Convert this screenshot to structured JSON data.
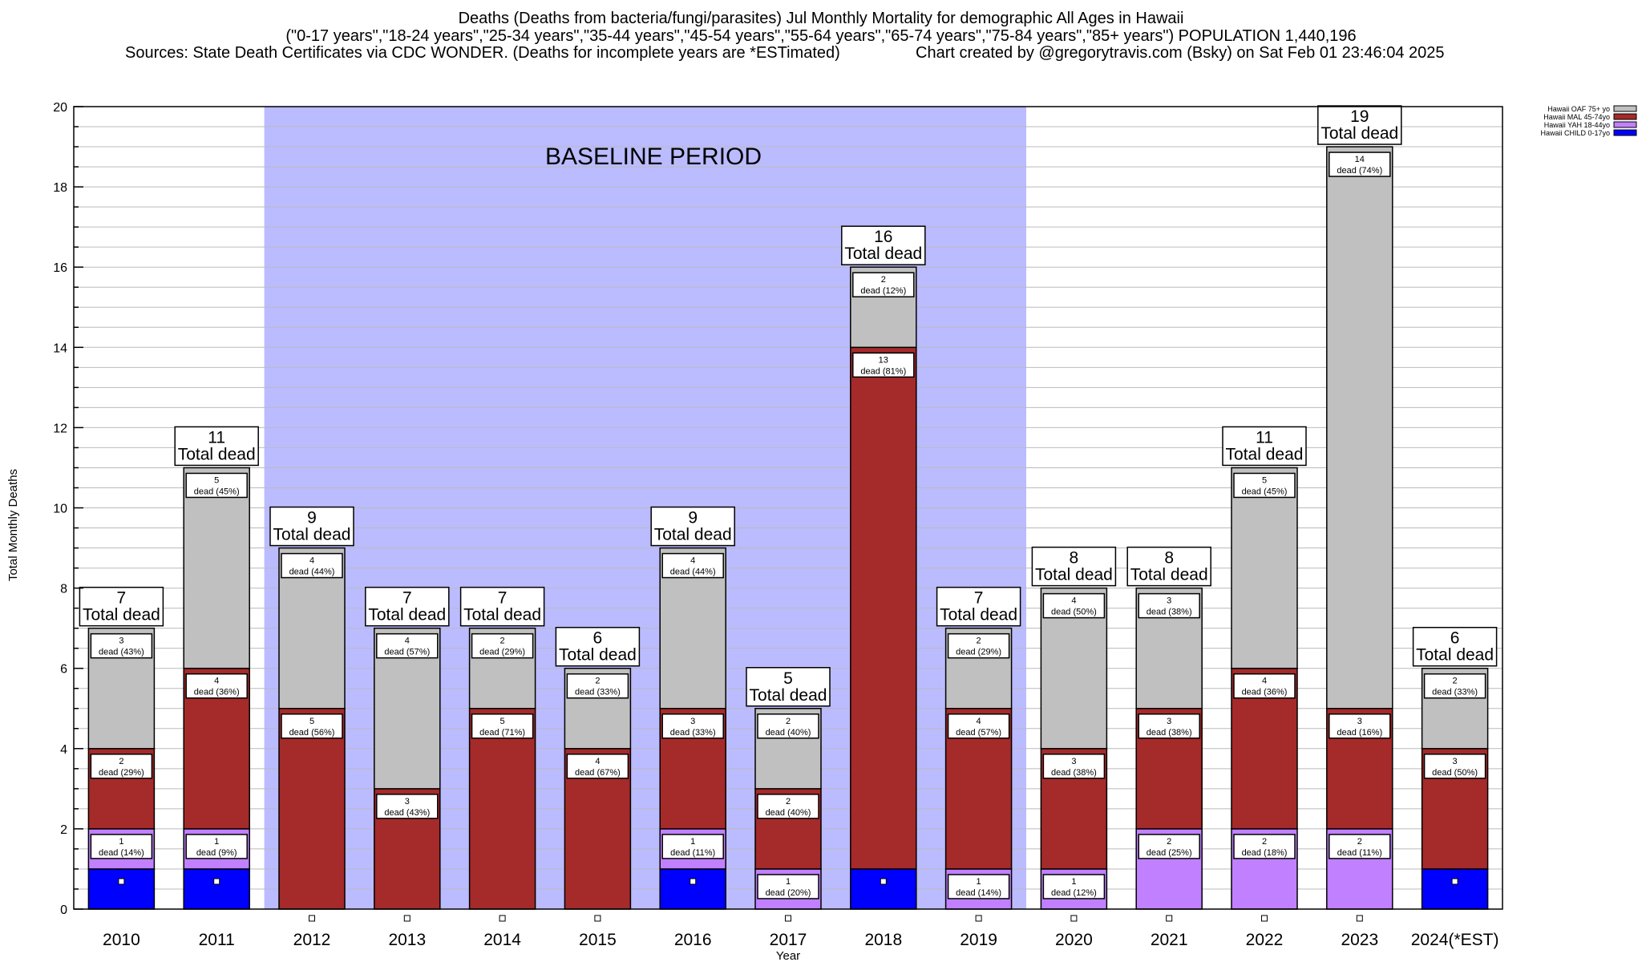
{
  "header": {
    "title_line1": "Deaths (Deaths from bacteria/fungi/parasites) Jul Monthly Mortality for demographic All Ages in Hawaii",
    "title_line2": "(\"0-17 years\",\"18-24 years\",\"25-34 years\",\"35-44 years\",\"45-54 years\",\"55-64 years\",\"65-74 years\",\"75-84 years\",\"85+ years\") POPULATION 1,440,196",
    "source_left": "Sources: State Death Certificates via CDC WONDER. (Deaths for incomplete years are *ESTimated)",
    "source_right": "Chart created by @gregorytravis.com (Bsky) on Sat Feb 01 23:46:04 2025"
  },
  "chart_data": {
    "type": "bar",
    "stacked": true,
    "xlabel": "Year",
    "ylabel": "Total Monthly Deaths",
    "ylim": [
      0,
      20
    ],
    "yticks": [
      0,
      2,
      4,
      6,
      8,
      10,
      12,
      14,
      16,
      18,
      20
    ],
    "grid": true,
    "legend_position": "top-right",
    "baseline_label": "BASELINE PERIOD",
    "baseline_range": [
      "2012",
      "2019"
    ],
    "total_label_suffix": "Total dead",
    "segment_label_word": "dead",
    "categories": [
      "2010",
      "2011",
      "2012",
      "2013",
      "2014",
      "2015",
      "2016",
      "2017",
      "2018",
      "2019",
      "2020",
      "2021",
      "2022",
      "2023",
      "2024(*EST)"
    ],
    "totals": [
      7,
      11,
      9,
      7,
      7,
      6,
      9,
      5,
      16,
      7,
      8,
      8,
      11,
      19,
      6
    ],
    "series": [
      {
        "name": "Hawaii CHILD 0-17yo",
        "color": "#0000ff",
        "values": [
          1,
          1,
          0,
          0,
          0,
          0,
          1,
          0,
          1,
          0,
          0,
          0,
          0,
          0,
          1
        ],
        "labels": [
          "",
          "",
          "",
          "",
          "",
          "",
          "",
          "",
          "",
          "",
          "",
          "",
          "",
          "",
          ""
        ]
      },
      {
        "name": "Hawaii YAH 18-44yo",
        "color": "#c080ff",
        "values": [
          1,
          1,
          0,
          0,
          0,
          0,
          1,
          1,
          0,
          1,
          1,
          2,
          2,
          2,
          0
        ],
        "labels": [
          "(14%)",
          "(9%)",
          "",
          "",
          "",
          "",
          "(11%)",
          "(20%)",
          "",
          "(14%)",
          "(12%)",
          "(25%)",
          "(18%)",
          "(11%)",
          ""
        ]
      },
      {
        "name": "Hawaii MAL 45-74yo",
        "color": "#a52a2a",
        "values": [
          2,
          4,
          5,
          3,
          5,
          4,
          3,
          2,
          13,
          4,
          3,
          3,
          4,
          3,
          3
        ],
        "labels": [
          "(29%)",
          "(36%)",
          "(56%)",
          "(43%)",
          "(71%)",
          "(67%)",
          "(33%)",
          "(40%)",
          "(81%)",
          "(57%)",
          "(38%)",
          "(38%)",
          "(36%)",
          "(16%)",
          "(50%)"
        ]
      },
      {
        "name": "Hawaii OAF 75+ yo",
        "color": "#c0c0c0",
        "values": [
          3,
          5,
          4,
          4,
          2,
          2,
          4,
          2,
          2,
          2,
          4,
          3,
          5,
          14,
          2
        ],
        "labels": [
          "(43%)",
          "(45%)",
          "(44%)",
          "(57%)",
          "(29%)",
          "(33%)",
          "(44%)",
          "(40%)",
          "(12%)",
          "(29%)",
          "(50%)",
          "(38%)",
          "(45%)",
          "(74%)",
          "(33%)"
        ]
      }
    ],
    "colors": {
      "baseline_shade": "#bbbbff",
      "grid": "#bbbbbb",
      "axis": "#000000"
    }
  }
}
